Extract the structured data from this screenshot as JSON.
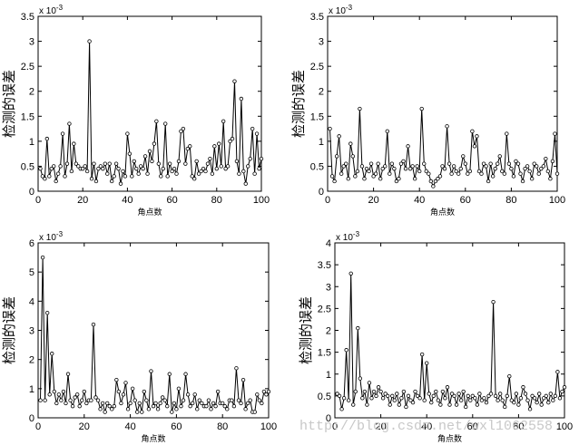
{
  "chart_data": [
    {
      "type": "line",
      "title": "",
      "xlabel": "角点数",
      "ylabel": "检测的误差",
      "exponent": "x 10",
      "exponent_power": "-3",
      "xlim": [
        0,
        100
      ],
      "ylim": [
        0,
        3.5
      ],
      "xticks": [
        "0",
        "20",
        "40",
        "60",
        "80",
        "100"
      ],
      "yticks": [
        "0",
        "0.5",
        "1",
        "1.5",
        "2",
        "2.5",
        "3",
        "3.5"
      ],
      "x": [
        1,
        2,
        3,
        4,
        5,
        6,
        7,
        8,
        9,
        10,
        11,
        12,
        13,
        14,
        15,
        16,
        17,
        18,
        19,
        20,
        21,
        22,
        23,
        24,
        25,
        26,
        27,
        28,
        29,
        30,
        31,
        32,
        33,
        34,
        35,
        36,
        37,
        38,
        39,
        40,
        41,
        42,
        43,
        44,
        45,
        46,
        47,
        48,
        49,
        50,
        51,
        52,
        53,
        54,
        55,
        56,
        57,
        58,
        59,
        60,
        61,
        62,
        63,
        64,
        65,
        66,
        67,
        68,
        69,
        70,
        71,
        72,
        73,
        74,
        75,
        76,
        77,
        78,
        79,
        80,
        81,
        82,
        83,
        84,
        85,
        86,
        87,
        88,
        89,
        90,
        91,
        92,
        93,
        94,
        95,
        96,
        97,
        98,
        99,
        100
      ],
      "series": [
        {
          "values": [
            0.45,
            0.3,
            0.25,
            1.05,
            0.3,
            0.45,
            0.5,
            0.2,
            0.35,
            0.5,
            1.15,
            0.3,
            0.55,
            1.35,
            0.4,
            0.95,
            0.55,
            0.5,
            0.45,
            0.45,
            0.5,
            0.4,
            3.0,
            0.25,
            0.55,
            0.2,
            0.45,
            0.5,
            0.45,
            0.55,
            0.35,
            0.55,
            0.2,
            0.3,
            0.55,
            0.45,
            0.15,
            0.4,
            0.3,
            1.15,
            0.75,
            0.3,
            0.6,
            0.45,
            0.35,
            0.5,
            0.45,
            0.7,
            0.35,
            0.8,
            0.6,
            0.95,
            1.4,
            0.55,
            0.3,
            0.45,
            1.35,
            0.3,
            0.55,
            0.4,
            0.45,
            0.35,
            0.6,
            1.2,
            1.25,
            0.55,
            0.85,
            0.9,
            0.3,
            0.25,
            0.6,
            0.35,
            0.4,
            0.45,
            0.4,
            0.55,
            0.65,
            0.35,
            0.9,
            0.45,
            0.95,
            0.5,
            1.4,
            0.45,
            0.5,
            1.0,
            1.05,
            2.2,
            0.6,
            0.35,
            1.85,
            0.4,
            0.15,
            0.5,
            0.65,
            1.25,
            0.35,
            1.15,
            0.45,
            0.65
          ]
        }
      ]
    },
    {
      "type": "line",
      "title": "",
      "xlabel": "角点数",
      "ylabel": "检测的误差",
      "exponent": "x 10",
      "exponent_power": "-3",
      "xlim": [
        0,
        100
      ],
      "ylim": [
        0,
        3.5
      ],
      "xticks": [
        "0",
        "20",
        "40",
        "60",
        "80",
        "100"
      ],
      "yticks": [
        "0",
        "0.5",
        "1",
        "1.5",
        "2",
        "2.5",
        "3",
        "3.5"
      ],
      "x": [
        1,
        2,
        3,
        4,
        5,
        6,
        7,
        8,
        9,
        10,
        11,
        12,
        13,
        14,
        15,
        16,
        17,
        18,
        19,
        20,
        21,
        22,
        23,
        24,
        25,
        26,
        27,
        28,
        29,
        30,
        31,
        32,
        33,
        34,
        35,
        36,
        37,
        38,
        39,
        40,
        41,
        42,
        43,
        44,
        45,
        46,
        47,
        48,
        49,
        50,
        51,
        52,
        53,
        54,
        55,
        56,
        57,
        58,
        59,
        60,
        61,
        62,
        63,
        64,
        65,
        66,
        67,
        68,
        69,
        70,
        71,
        72,
        73,
        74,
        75,
        76,
        77,
        78,
        79,
        80,
        81,
        82,
        83,
        84,
        85,
        86,
        87,
        88,
        89,
        90,
        91,
        92,
        93,
        94,
        95,
        96,
        97,
        98,
        99,
        100
      ],
      "series": [
        {
          "values": [
            1.25,
            0.3,
            0.2,
            0.7,
            1.1,
            0.35,
            0.5,
            0.55,
            0.25,
            0.95,
            0.7,
            0.3,
            0.4,
            1.65,
            0.5,
            0.25,
            0.45,
            0.4,
            0.55,
            0.3,
            0.35,
            0.55,
            0.25,
            0.45,
            0.5,
            1.2,
            0.35,
            0.55,
            0.45,
            0.2,
            0.25,
            0.55,
            0.6,
            0.45,
            0.9,
            0.45,
            0.5,
            0.25,
            0.5,
            0.4,
            1.65,
            0.55,
            0.4,
            0.35,
            0.2,
            0.1,
            0.2,
            0.25,
            0.3,
            0.5,
            0.45,
            1.3,
            0.55,
            0.35,
            0.5,
            0.4,
            0.35,
            0.45,
            0.7,
            0.55,
            0.35,
            0.4,
            1.2,
            0.9,
            1.1,
            0.4,
            0.35,
            0.55,
            0.5,
            0.2,
            0.55,
            0.3,
            0.45,
            0.55,
            0.7,
            0.4,
            0.35,
            1.15,
            0.55,
            0.45,
            0.3,
            0.6,
            0.55,
            0.35,
            0.2,
            0.45,
            0.5,
            0.4,
            0.25,
            0.55,
            0.5,
            0.35,
            0.45,
            0.5,
            0.65,
            0.4,
            0.25,
            0.6,
            1.15,
            0.35
          ]
        }
      ]
    },
    {
      "type": "line",
      "title": "",
      "xlabel": "角点数",
      "ylabel": "检测的误差",
      "exponent": "x 10",
      "exponent_power": "-3",
      "xlim": [
        0,
        100
      ],
      "ylim": [
        0,
        6
      ],
      "xticks": [
        "0",
        "20",
        "40",
        "60",
        "80",
        "100"
      ],
      "yticks": [
        "0",
        "1",
        "2",
        "3",
        "4",
        "5",
        "6"
      ],
      "x": [
        1,
        2,
        3,
        4,
        5,
        6,
        7,
        8,
        9,
        10,
        11,
        12,
        13,
        14,
        15,
        16,
        17,
        18,
        19,
        20,
        21,
        22,
        23,
        24,
        25,
        26,
        27,
        28,
        29,
        30,
        31,
        32,
        33,
        34,
        35,
        36,
        37,
        38,
        39,
        40,
        41,
        42,
        43,
        44,
        45,
        46,
        47,
        48,
        49,
        50,
        51,
        52,
        53,
        54,
        55,
        56,
        57,
        58,
        59,
        60,
        61,
        62,
        63,
        64,
        65,
        66,
        67,
        68,
        69,
        70,
        71,
        72,
        73,
        74,
        75,
        76,
        77,
        78,
        79,
        80,
        81,
        82,
        83,
        84,
        85,
        86,
        87,
        88,
        89,
        90,
        91,
        92,
        93,
        94,
        95,
        96,
        97,
        98,
        99,
        100
      ],
      "series": [
        {
          "values": [
            0.6,
            5.5,
            0.6,
            3.6,
            0.8,
            2.2,
            0.9,
            0.5,
            0.8,
            0.6,
            0.9,
            0.5,
            1.5,
            0.6,
            0.4,
            0.7,
            0.8,
            0.4,
            0.6,
            0.9,
            0.5,
            0.6,
            0.6,
            3.2,
            0.7,
            0.6,
            0.3,
            0.5,
            0.2,
            0.5,
            0.4,
            0.3,
            0.4,
            1.3,
            0.9,
            0.5,
            0.8,
            1.2,
            0.3,
            0.5,
            1.0,
            0.6,
            0.2,
            0.5,
            0.2,
            0.9,
            0.6,
            0.3,
            1.6,
            0.4,
            0.5,
            0.3,
            0.5,
            0.7,
            0.6,
            0.4,
            1.5,
            0.2,
            0.5,
            0.3,
            1.0,
            0.4,
            0.6,
            1.5,
            0.8,
            0.4,
            0.5,
            0.8,
            0.3,
            0.6,
            0.5,
            0.4,
            0.4,
            0.6,
            0.3,
            0.5,
            0.4,
            0.9,
            0.5,
            0.5,
            0.4,
            0.3,
            0.6,
            0.6,
            0.4,
            1.7,
            0.6,
            0.5,
            1.3,
            0.3,
            0.5,
            0.6,
            0.2,
            0.2,
            0.8,
            0.6,
            0.5,
            0.9,
            0.8,
            0.9
          ]
        }
      ]
    },
    {
      "type": "line",
      "title": "",
      "xlabel": "角点数",
      "ylabel": "检测的误差",
      "exponent": "x 10",
      "exponent_power": "-3",
      "xlim": [
        0,
        100
      ],
      "ylim": [
        0,
        4
      ],
      "xticks": [
        "0",
        "20",
        "40",
        "60",
        "80",
        "100"
      ],
      "yticks": [
        "0",
        "0.5",
        "1",
        "1.5",
        "2",
        "2.5",
        "3",
        "3.5",
        "4"
      ],
      "x": [
        1,
        2,
        3,
        4,
        5,
        6,
        7,
        8,
        9,
        10,
        11,
        12,
        13,
        14,
        15,
        16,
        17,
        18,
        19,
        20,
        21,
        22,
        23,
        24,
        25,
        26,
        27,
        28,
        29,
        30,
        31,
        32,
        33,
        34,
        35,
        36,
        37,
        38,
        39,
        40,
        41,
        42,
        43,
        44,
        45,
        46,
        47,
        48,
        49,
        50,
        51,
        52,
        53,
        54,
        55,
        56,
        57,
        58,
        59,
        60,
        61,
        62,
        63,
        64,
        65,
        66,
        67,
        68,
        69,
        70,
        71,
        72,
        73,
        74,
        75,
        76,
        77,
        78,
        79,
        80,
        81,
        82,
        83,
        84,
        85,
        86,
        87,
        88,
        89,
        90,
        91,
        92,
        93,
        94,
        95,
        96,
        97,
        98,
        99,
        100
      ],
      "series": [
        {
          "values": [
            0.55,
            0.5,
            0.2,
            0.45,
            1.55,
            0.4,
            3.3,
            0.3,
            0.6,
            2.05,
            0.9,
            0.45,
            0.6,
            0.3,
            0.8,
            0.45,
            0.6,
            0.5,
            0.7,
            0.6,
            0.45,
            0.55,
            0.5,
            0.3,
            0.5,
            0.4,
            0.55,
            0.3,
            0.45,
            0.6,
            0.25,
            0.5,
            0.4,
            0.35,
            0.6,
            0.5,
            0.45,
            1.45,
            0.4,
            1.25,
            0.55,
            0.35,
            0.5,
            0.6,
            0.4,
            0.3,
            0.6,
            0.45,
            0.7,
            0.3,
            0.55,
            0.5,
            0.3,
            0.55,
            0.4,
            0.6,
            0.25,
            0.5,
            0.4,
            0.5,
            0.45,
            0.3,
            0.55,
            0.4,
            0.45,
            0.35,
            0.5,
            0.55,
            2.65,
            0.5,
            0.4,
            0.55,
            0.4,
            0.25,
            0.5,
            0.95,
            0.4,
            0.35,
            0.55,
            0.3,
            0.45,
            0.7,
            0.55,
            0.4,
            0.2,
            0.5,
            0.45,
            0.35,
            0.55,
            0.3,
            0.45,
            0.5,
            0.35,
            0.55,
            0.4,
            0.5,
            1.05,
            0.45,
            0.6,
            0.7
          ]
        }
      ]
    }
  ],
  "watermark": "http://blog.csdn.net/wxl1062558"
}
